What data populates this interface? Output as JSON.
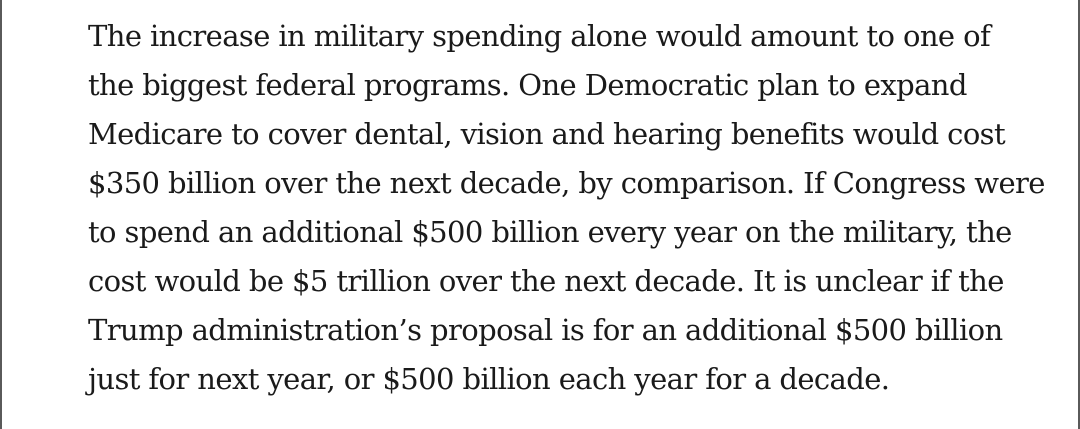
{
  "article": {
    "lines": [
      "The increase in military spending alone would amount to one of",
      "the biggest federal programs. One Democratic plan to expand",
      "Medicare to cover dental, vision and hearing benefits would cost",
      "$350 billion over the next decade, by comparison. If Congress were",
      "to spend an additional $500 billion every year on the military, the",
      "cost would be $5 trillion over the next decade. It is unclear if the",
      "Trump administration’s proposal is for an additional $500 billion",
      "just for next year, or $500 billion each year for a decade."
    ]
  }
}
